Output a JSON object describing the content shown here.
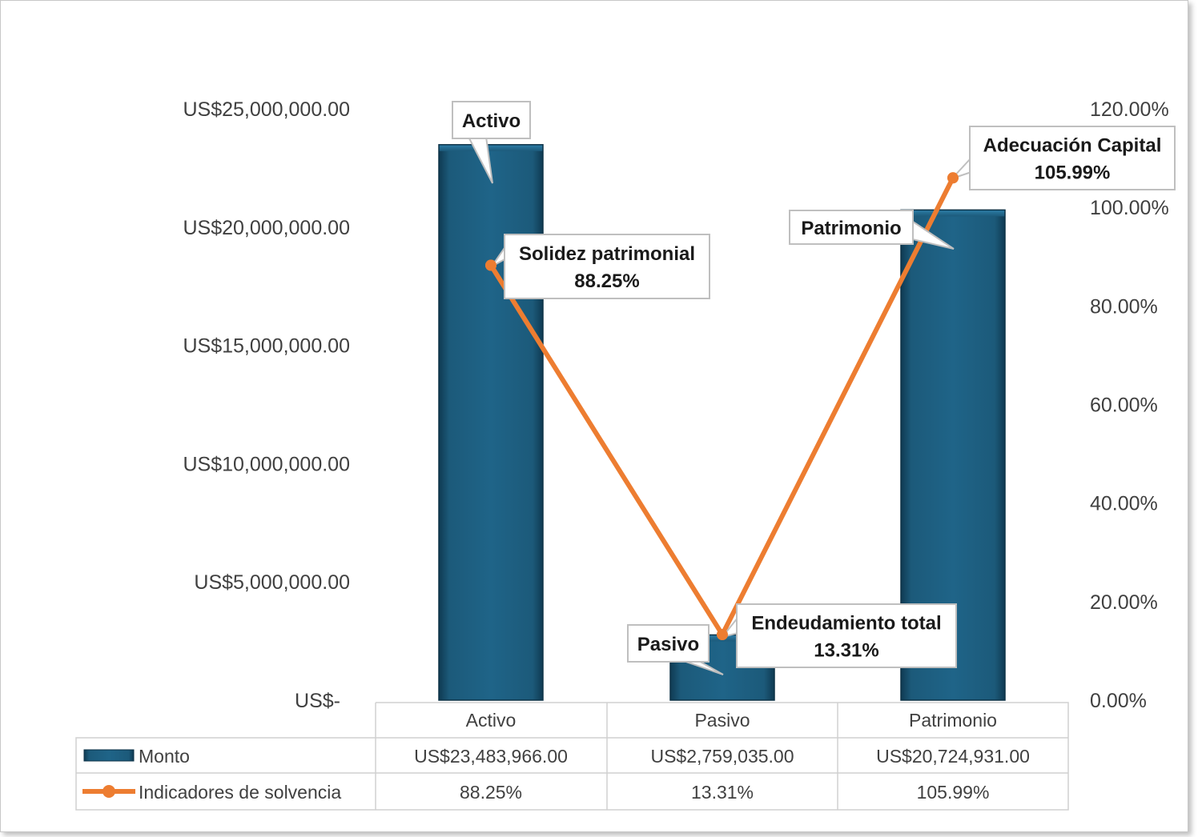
{
  "chart_data": {
    "type": "bar",
    "categories": [
      "Activo",
      "Pasivo",
      "Patrimonio"
    ],
    "series": [
      {
        "name": "Monto",
        "kind": "bar",
        "axis": "left",
        "values": [
          23483966.0,
          2759035.0,
          20724931.0
        ],
        "table_values": [
          "US$23,483,966.00",
          "US$2,759,035.00",
          "US$20,724,931.00"
        ],
        "color": "#1f5f80"
      },
      {
        "name": "Indicadores de solvencia",
        "kind": "line",
        "axis": "right",
        "values": [
          88.25,
          13.31,
          105.99
        ],
        "table_values": [
          "88.25%",
          "13.31%",
          "105.99%"
        ],
        "color": "#ed7d31"
      }
    ],
    "left_axis": {
      "ylim": [
        0,
        25000000
      ],
      "ticks": [
        0,
        5000000,
        10000000,
        15000000,
        20000000,
        25000000
      ],
      "tick_labels": [
        "US$-",
        "US$5,000,000.00",
        "US$10,000,000.00",
        "US$15,000,000.00",
        "US$20,000,000.00",
        "US$25,000,000.00"
      ]
    },
    "right_axis": {
      "ylim": [
        0,
        120
      ],
      "ticks": [
        0,
        20,
        40,
        60,
        80,
        100,
        120
      ],
      "tick_labels": [
        "0.00%",
        "20.00%",
        "40.00%",
        "60.00%",
        "80.00%",
        "100.00%",
        "120.00%"
      ]
    },
    "bar_callouts": [
      "Activo",
      "Pasivo",
      "Patrimonio"
    ],
    "line_callouts": [
      {
        "name": "Solidez patrimonial",
        "value": "88.25%"
      },
      {
        "name": "Endeudamiento total",
        "value": "13.31%"
      },
      {
        "name": "Adecuación Capital",
        "value": "105.99%"
      }
    ],
    "title": "",
    "xlabel": "",
    "ylabel": "",
    "legend": "data-table",
    "grid": false
  }
}
